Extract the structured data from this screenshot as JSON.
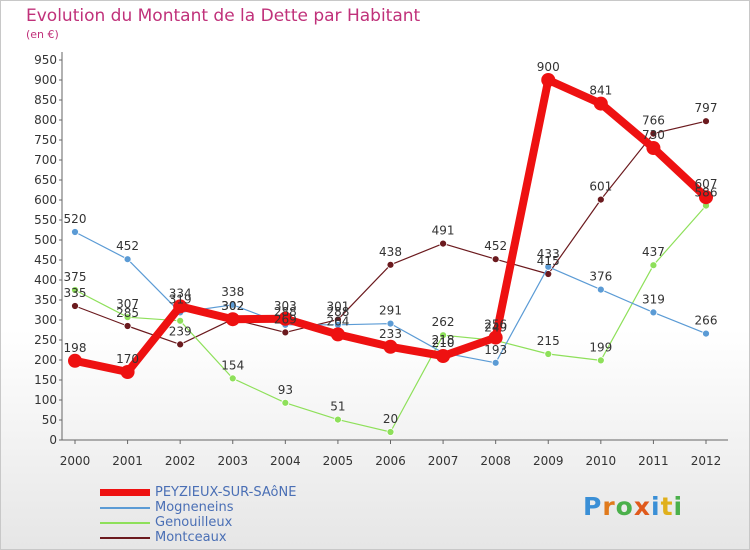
{
  "chart_data": {
    "type": "line",
    "title": "Evolution du Montant de la Dette par Habitant",
    "unit_label": "(en €)",
    "x": [
      "2000",
      "2001",
      "2002",
      "2003",
      "2004",
      "2005",
      "2006",
      "2007",
      "2008",
      "2009",
      "2010",
      "2011",
      "2012"
    ],
    "y_ticks": [
      0,
      50,
      100,
      150,
      200,
      250,
      300,
      350,
      400,
      450,
      500,
      550,
      600,
      650,
      700,
      750,
      800,
      850,
      900,
      950
    ],
    "ylim": [
      0,
      950
    ],
    "grid": false,
    "series": [
      {
        "name": "Montceaux",
        "color": "#6b1a1e",
        "values": [
          335,
          285,
          239,
          302,
          269,
          301,
          438,
          491,
          452,
          415,
          601,
          766,
          797
        ]
      },
      {
        "name": "Genouilleux",
        "color": "#8ee05a",
        "values": [
          375,
          307,
          298,
          154,
          93,
          51,
          20,
          262,
          249,
          215,
          199,
          437,
          586
        ]
      },
      {
        "name": "Mogneneins",
        "color": "#5b9bd5",
        "values": [
          520,
          452,
          319,
          338,
          288,
          288,
          291,
          218,
          193,
          433,
          376,
          319,
          266
        ]
      },
      {
        "name": "PEYZIEUX-SUR-SAôNE",
        "color": "#ee1111",
        "values": [
          198,
          170,
          334,
          302,
          303,
          264,
          233,
          210,
          256,
          900,
          841,
          730,
          607
        ]
      }
    ],
    "value_labels": {
      "Montceaux": [
        "335",
        "285",
        "239",
        "302",
        "269",
        "301",
        "438",
        "491",
        "452",
        "415",
        "601",
        "766",
        "797"
      ],
      "Genouilleux": [
        "375",
        "307",
        "",
        "154",
        "93",
        "51",
        "20",
        "262",
        "249",
        "215",
        "199",
        "437",
        "586"
      ],
      "Mogneneins": [
        "520",
        "452",
        "319",
        "338",
        "288",
        "288",
        "291",
        "218",
        "193",
        "433",
        "376",
        "319",
        "266"
      ],
      "PEYZIEUX-SUR-SAôNE": [
        "198",
        "170",
        "334",
        "302",
        "303",
        "264",
        "233",
        "210",
        "256",
        "900",
        "841",
        "730",
        "607"
      ]
    }
  },
  "legend": [
    {
      "label": "PEYZIEUX-SUR-SAôNE",
      "color": "#ee1111",
      "thick": true
    },
    {
      "label": "Mogneneins",
      "color": "#5b9bd5",
      "thick": false
    },
    {
      "label": "Genouilleux",
      "color": "#8ee05a",
      "thick": false
    },
    {
      "label": "Montceaux",
      "color": "#6b1a1e",
      "thick": false
    }
  ],
  "logo": {
    "letters": [
      "P",
      "r",
      "o",
      "x",
      "i",
      "t",
      "i"
    ]
  }
}
